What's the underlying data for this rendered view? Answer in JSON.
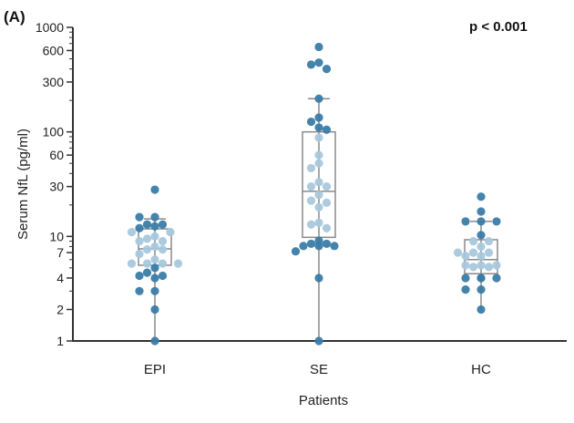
{
  "chart_data": {
    "type": "box-scatter",
    "panel_label": "(A)",
    "annotation": "p < 0.001",
    "xlabel": "Patients",
    "ylabel": "Serum NfL (pg/ml)",
    "yscale": "log",
    "ylim": [
      1,
      1000
    ],
    "yticks": [
      1,
      2,
      4,
      7,
      10,
      30,
      60,
      100,
      300,
      600,
      1000
    ],
    "ytick_labels": [
      "1",
      "2",
      "4",
      "7",
      "10",
      "30",
      "60",
      "100",
      "300",
      "600",
      "1000"
    ],
    "categories": [
      "EPI",
      "SE",
      "HC"
    ],
    "colors": {
      "outside_box": "#3a7ca8",
      "inside_box": "#a9c8dc",
      "box": "#8a8a8a",
      "axis": "#333333"
    },
    "groups": [
      {
        "name": "EPI",
        "box": {
          "min": 1,
          "q1": 5.3,
          "median": 7.6,
          "q3": 11.8,
          "max": 14.7
        },
        "values": [
          28,
          15.3,
          15.3,
          13,
          13,
          12.5,
          12,
          11,
          11,
          10,
          9.5,
          9,
          9,
          8,
          7.5,
          7.5,
          6.8,
          6,
          5.5,
          5.5,
          5.5,
          5.5,
          5,
          4.5,
          4.2,
          4.2,
          4,
          3,
          3,
          2,
          1
        ]
      },
      {
        "name": "SE",
        "box": {
          "min": 1,
          "q1": 9.8,
          "median": 27,
          "q3": 100,
          "max": 208
        },
        "values": [
          650,
          460,
          440,
          400,
          208,
          137,
          125,
          110,
          105,
          88,
          60,
          50,
          45,
          33,
          30,
          30,
          25,
          22,
          21,
          19,
          13.5,
          13,
          12,
          9.1,
          8.5,
          8.5,
          8.1,
          8.1,
          8.1,
          7.2,
          4,
          1
        ]
      },
      {
        "name": "HC",
        "box": {
          "min": 2,
          "q1": 4.4,
          "median": 6,
          "q3": 9.3,
          "max": 13.9
        },
        "values": [
          24,
          17.3,
          13.9,
          13.9,
          13.9,
          10.3,
          9,
          9,
          8,
          7,
          7,
          7,
          6.5,
          6.5,
          5.3,
          5.3,
          5.3,
          5.1,
          5.1,
          4,
          4,
          4,
          4,
          3.1,
          3.1,
          2
        ]
      }
    ]
  }
}
